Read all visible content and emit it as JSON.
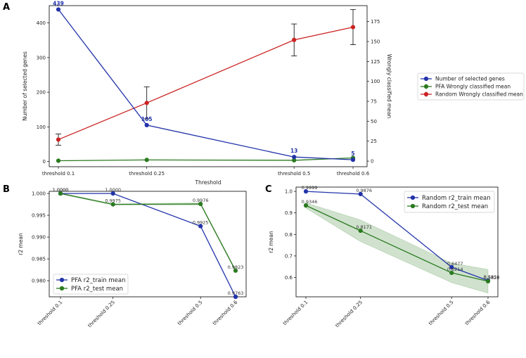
{
  "panels": {
    "a": {
      "letter": "A"
    },
    "b": {
      "letter": "B"
    },
    "c": {
      "letter": "C"
    }
  },
  "chart_data": [
    {
      "id": "a",
      "type": "line",
      "categories": [
        "threshold 0.1",
        "threshold 0.25",
        "threshold 0.5",
        "threshold 0.6"
      ],
      "x": [
        0.1,
        0.25,
        0.5,
        0.6
      ],
      "xlabel": "Threshold",
      "ylabel": "Number of selected genes",
      "ylabel_right": "Wrongly classified mean",
      "ylim": [
        -15,
        450
      ],
      "ylim_right": [
        -7,
        195
      ],
      "yticks": [
        0,
        100,
        200,
        300,
        400
      ],
      "yticks_right": [
        0,
        25,
        50,
        75,
        100,
        125,
        150,
        175
      ],
      "legend": "right-outside",
      "series": [
        {
          "name": "Number of selected genes",
          "axis": "left",
          "color": "#2233aa",
          "values": [
            439,
            105,
            13,
            5
          ],
          "labels": [
            "439",
            "105",
            "13",
            "5"
          ]
        },
        {
          "name": "PFA Wrongly classified mean",
          "axis": "right",
          "color": "#2a7a1f",
          "values": [
            0.5,
            1.5,
            1.0,
            4.0
          ],
          "errors": [
            0,
            0,
            0,
            0
          ]
        },
        {
          "name": "Random Wrongly classified mean",
          "axis": "right",
          "color": "#cc2222",
          "values": [
            27,
            73,
            152,
            168
          ],
          "errors": [
            7,
            20,
            20,
            22
          ]
        }
      ]
    },
    {
      "id": "b",
      "type": "line",
      "categories": [
        "threshold 0.1",
        "threshold 0.25",
        "threshold 0.5",
        "threshold 0.6"
      ],
      "x": [
        0.1,
        0.25,
        0.5,
        0.6
      ],
      "xlabel": "",
      "ylabel": "r2 mean",
      "ylim": [
        0.9763,
        1.0005
      ],
      "yticks": [
        0.98,
        0.985,
        0.99,
        0.995,
        1.0
      ],
      "ytick_labels": [
        "0.980",
        "0.985",
        "0.990",
        "0.995",
        "1.000"
      ],
      "legend": "bottom-left",
      "series": [
        {
          "name": "PFA r2_train mean",
          "color": "#2233aa",
          "values": [
            1.0,
            1.0,
            0.9925,
            0.9763
          ],
          "labels": [
            "1.0000",
            "1.0000",
            "0.9925",
            "0.9763"
          ]
        },
        {
          "name": "PFA r2_test mean",
          "color": "#2a7a1f",
          "values": [
            1.0,
            0.9975,
            0.9976,
            0.9823
          ],
          "labels": [
            "1.0000",
            "0.9975",
            "0.9976",
            "0.9823"
          ],
          "band": [
            0.0002,
            0.0002,
            0.0003,
            0.0003
          ]
        }
      ]
    },
    {
      "id": "c",
      "type": "line",
      "categories": [
        "threshold 0.1",
        "threshold 0.25",
        "threshold 0.5",
        "threshold 0.6"
      ],
      "x": [
        0.1,
        0.25,
        0.5,
        0.6
      ],
      "xlabel": "",
      "ylabel": "r2 mean",
      "ylim": [
        0.51,
        1.02
      ],
      "yticks": [
        0.6,
        0.7,
        0.8,
        0.9,
        1.0
      ],
      "ytick_labels": [
        "0.6",
        "0.7",
        "0.8",
        "0.9",
        "1.0"
      ],
      "legend": "top-right",
      "series": [
        {
          "name": "Random r2_train mean",
          "color": "#2233aa",
          "values": [
            0.9999,
            0.9876,
            0.6477,
            0.5856
          ],
          "labels": [
            "0.9999",
            "0.9876",
            "0.6477",
            "0.5856"
          ]
        },
        {
          "name": "Random r2_test mean",
          "color": "#2a7a1f",
          "values": [
            0.9346,
            0.8171,
            0.6214,
            0.5822
          ],
          "labels": [
            "0.9346",
            "0.8171",
            "0.6214",
            "0.5822"
          ],
          "band": [
            0.012,
            0.05,
            0.045,
            0.055
          ]
        }
      ]
    }
  ]
}
